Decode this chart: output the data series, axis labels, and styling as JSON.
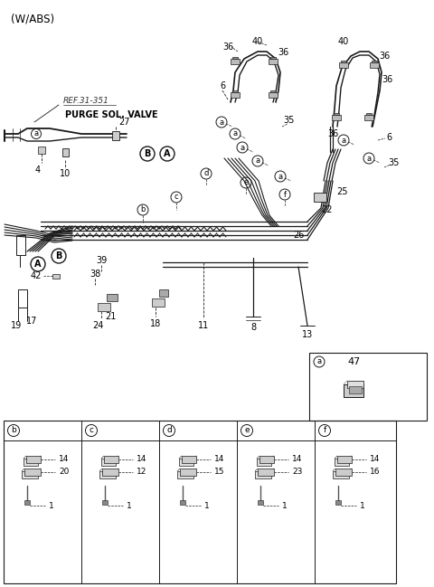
{
  "bg_color": "#ffffff",
  "line_color": "#1a1a1a",
  "text_color": "#000000",
  "fig_width": 4.8,
  "fig_height": 6.49,
  "dpi": 100,
  "title": "(W/ABS)",
  "ref_label": "REF.31-351",
  "purge_label": "PURGE SOL. VALVE"
}
